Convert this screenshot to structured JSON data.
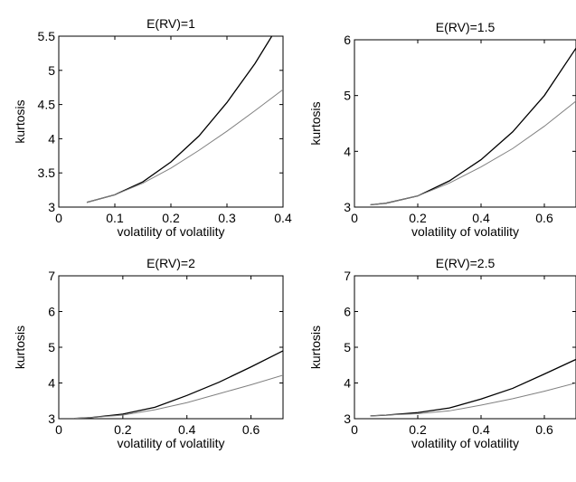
{
  "chart_data": [
    {
      "type": "line",
      "title": "E(RV)=1",
      "xlabel": "volatility of volatility",
      "ylabel": "kurtosis",
      "xlim": [
        0,
        0.4
      ],
      "ylim": [
        3,
        5.5
      ],
      "xticks": [
        "0",
        "0.1",
        "0.2",
        "0.3",
        "0.4"
      ],
      "yticks": [
        "3",
        "3.5",
        "4",
        "4.5",
        "5",
        "5.5"
      ],
      "series": [
        {
          "color": "#000000",
          "x": [
            0.05,
            0.1,
            0.15,
            0.2,
            0.25,
            0.3,
            0.35,
            0.38
          ],
          "y": [
            3.07,
            3.18,
            3.37,
            3.66,
            4.04,
            4.53,
            5.1,
            5.5
          ]
        },
        {
          "color": "#808080",
          "x": [
            0.05,
            0.1,
            0.15,
            0.2,
            0.25,
            0.3,
            0.35,
            0.4
          ],
          "y": [
            3.07,
            3.18,
            3.35,
            3.57,
            3.83,
            4.11,
            4.41,
            4.72
          ]
        }
      ]
    },
    {
      "type": "line",
      "title": "E(RV)=1.5",
      "xlabel": "volatility of volatility",
      "ylabel": "kurtosis",
      "xlim": [
        0,
        0.7
      ],
      "ylim": [
        3,
        6
      ],
      "xticks": [
        "0",
        "0.2",
        "0.4",
        "0.6"
      ],
      "yticks": [
        "3",
        "4",
        "5",
        "6"
      ],
      "series": [
        {
          "color": "#000000",
          "x": [
            0.05,
            0.1,
            0.2,
            0.3,
            0.4,
            0.5,
            0.6,
            0.7
          ],
          "y": [
            3.04,
            3.07,
            3.2,
            3.47,
            3.85,
            4.35,
            5.0,
            5.85
          ]
        },
        {
          "color": "#808080",
          "x": [
            0.05,
            0.1,
            0.2,
            0.3,
            0.4,
            0.5,
            0.6,
            0.7
          ],
          "y": [
            3.04,
            3.07,
            3.2,
            3.43,
            3.72,
            4.05,
            4.45,
            4.9
          ]
        }
      ]
    },
    {
      "type": "line",
      "title": "E(RV)=2",
      "xlabel": "volatility of volatility",
      "ylabel": "kurtosis",
      "xlim": [
        0,
        0.7
      ],
      "ylim": [
        3,
        7
      ],
      "xticks": [
        "0",
        "0.2",
        "0.4",
        "0.6"
      ],
      "yticks": [
        "3",
        "4",
        "5",
        "6",
        "7"
      ],
      "series": [
        {
          "color": "#000000",
          "x": [
            0.05,
            0.1,
            0.2,
            0.3,
            0.4,
            0.5,
            0.6,
            0.7
          ],
          "y": [
            3.01,
            3.03,
            3.13,
            3.32,
            3.65,
            4.02,
            4.45,
            4.9
          ]
        },
        {
          "color": "#808080",
          "x": [
            0.05,
            0.1,
            0.2,
            0.3,
            0.4,
            0.5,
            0.6,
            0.7
          ],
          "y": [
            3.01,
            3.03,
            3.1,
            3.25,
            3.45,
            3.7,
            3.95,
            4.22
          ]
        }
      ]
    },
    {
      "type": "line",
      "title": "E(RV)=2.5",
      "xlabel": "volatility of volatility",
      "ylabel": "kurtosis",
      "xlim": [
        0,
        0.7
      ],
      "ylim": [
        3,
        7
      ],
      "xticks": [
        "0",
        "0.2",
        "0.4",
        "0.6"
      ],
      "yticks": [
        "3",
        "4",
        "5",
        "6",
        "7"
      ],
      "series": [
        {
          "color": "#000000",
          "x": [
            0.05,
            0.1,
            0.2,
            0.3,
            0.4,
            0.5,
            0.6,
            0.7
          ],
          "y": [
            3.08,
            3.1,
            3.17,
            3.3,
            3.55,
            3.85,
            4.25,
            4.66
          ]
        },
        {
          "color": "#808080",
          "x": [
            0.05,
            0.1,
            0.2,
            0.3,
            0.4,
            0.5,
            0.6,
            0.7
          ],
          "y": [
            3.08,
            3.1,
            3.14,
            3.22,
            3.38,
            3.56,
            3.77,
            4.0
          ]
        }
      ]
    }
  ]
}
